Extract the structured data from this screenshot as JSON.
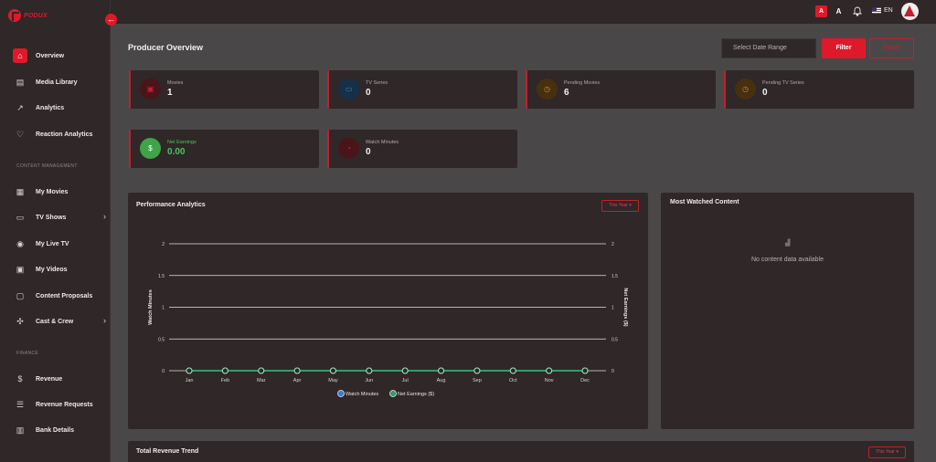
{
  "app": {
    "logo_text": "PODUX"
  },
  "sidebar": {
    "items": [
      {
        "label": "Overview",
        "icon": "home-icon"
      },
      {
        "label": "Media Library",
        "icon": "library-icon"
      },
      {
        "label": "Analytics",
        "icon": "chart-icon"
      },
      {
        "label": "Reaction Analytics",
        "icon": "heart-icon"
      },
      {
        "label": "My Movies",
        "icon": "film-icon"
      },
      {
        "label": "TV Shows",
        "icon": "tv-icon"
      },
      {
        "label": "My Live TV",
        "icon": "broadcast-icon"
      },
      {
        "label": "My Videos",
        "icon": "video-icon"
      },
      {
        "label": "Content Proposals",
        "icon": "document-icon"
      },
      {
        "label": "Cast & Crew",
        "icon": "people-icon"
      },
      {
        "label": "Revenue",
        "icon": "dollar-icon"
      },
      {
        "label": "Revenue Requests",
        "icon": "request-icon"
      },
      {
        "label": "Bank Details",
        "icon": "bank-icon"
      }
    ],
    "sections": {
      "content": "CONTENT MANAGEMENT",
      "finance": "FINANCE"
    }
  },
  "topbar": {
    "font_small": "A",
    "font_large": "A",
    "language": "EN"
  },
  "header": {
    "title": "Producer Overview",
    "date_placeholder": "Select Date Range",
    "filter_label": "Filter",
    "reset_label": "Reset"
  },
  "stats": [
    {
      "label": "Movies",
      "value": "1"
    },
    {
      "label": "TV Series",
      "value": "0"
    },
    {
      "label": "Pending Movies",
      "value": "6"
    },
    {
      "label": "Pending TV Series",
      "value": "0"
    },
    {
      "label": "Net Earnings",
      "value": "0.00"
    },
    {
      "label": "Watch Minutes",
      "value": "0"
    }
  ],
  "performance": {
    "title": "Performance Analytics",
    "period": "This Year"
  },
  "most_watched": {
    "title": "Most Watched Content",
    "empty_text": "No content data available"
  },
  "revenue_trend": {
    "title": "Total Revenue Trend",
    "period": "This Year"
  },
  "colors": {
    "accent": "#e0192a",
    "watch_minutes": "#3a7bd5",
    "net_earnings": "#2f9e6b"
  },
  "chart_data": {
    "type": "line",
    "categories": [
      "Jan",
      "Feb",
      "Mar",
      "Apr",
      "May",
      "Jun",
      "Jul",
      "Aug",
      "Sep",
      "Oct",
      "Nov",
      "Dec"
    ],
    "series": [
      {
        "name": "Watch Minutes",
        "values": [
          0,
          0,
          0,
          0,
          0,
          0,
          0,
          0,
          0,
          0,
          0,
          0
        ]
      },
      {
        "name": "Net Earnings ($)",
        "values": [
          0,
          0,
          0,
          0,
          0,
          0,
          0,
          0,
          0,
          0,
          0,
          0
        ]
      }
    ],
    "ylabel": "Watch Minutes",
    "ylabel_right": "Net Earnings ($)",
    "ylim": [
      0,
      2
    ],
    "yticks": [
      "0",
      "0.5",
      "1",
      "1.5",
      "2"
    ],
    "grid": true,
    "legend": "bottom"
  }
}
